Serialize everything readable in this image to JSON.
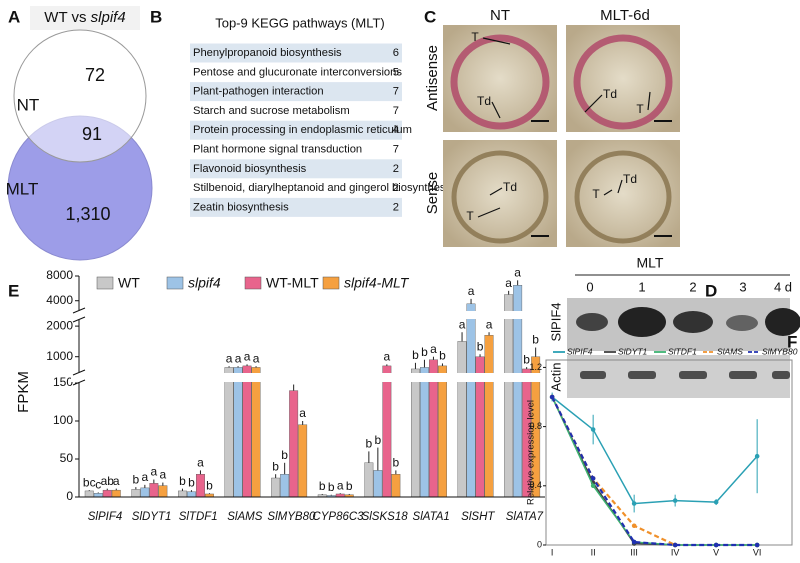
{
  "panel_letters": [
    "A",
    "B",
    "C",
    "D",
    "E",
    "F"
  ],
  "venn": {
    "title_prefix": "WT vs",
    "title_gene": "slpif4",
    "sets": [
      "NT",
      "MLT"
    ],
    "counts": [
      "72",
      "91",
      "1,310"
    ]
  },
  "kegg": {
    "title": "Top-9 KEGG pathways (MLT)",
    "rows": [
      [
        "Phenylpropanoid biosynthesis",
        6
      ],
      [
        "Pentose and glucuronate interconversions",
        5
      ],
      [
        "Plant-pathogen interaction",
        7
      ],
      [
        "Starch and sucrose metabolism",
        7
      ],
      [
        "Protein processing in endoplasmic reticulum",
        4
      ],
      [
        "Plant hormone signal transduction",
        7
      ],
      [
        "Flavonoid biosynthesis",
        2
      ],
      [
        "Stilbenoid, diarylheptanoid and gingerol biosynthesis",
        2
      ],
      [
        "Zeatin biosynthesis",
        2
      ]
    ]
  },
  "in_situ": {
    "columns": [
      "NT",
      "MLT-6d"
    ],
    "rows": [
      "Antisense",
      "Sense"
    ],
    "annotations": [
      [
        "T",
        "Td"
      ],
      [
        "Td",
        "T"
      ],
      [
        "Td",
        "T"
      ],
      [
        "T",
        "Td"
      ]
    ]
  },
  "western": {
    "group": "MLT",
    "lanes": [
      "0",
      "1",
      "2",
      "3",
      "4 d"
    ],
    "rows": [
      "SlPIF4",
      "Actin"
    ]
  },
  "chart_data": [
    {
      "type": "bar",
      "y_label": "FPKM",
      "categories": [
        "SlPIF4",
        "SlDYT1",
        "SlTDF1",
        "SlAMS",
        "SlMYB80",
        "CYP86C3",
        "SlSKS18",
        "SlATA1",
        "SlSHT",
        "SlATA7"
      ],
      "ylim": [
        0,
        8000
      ],
      "ysegments": [
        [
          0,
          150
        ],
        [
          500,
          2200
        ],
        [
          2500,
          8000
        ]
      ],
      "yticks": [
        0,
        50,
        100,
        150,
        1000,
        2000,
        4000,
        8000
      ],
      "series": [
        {
          "name": "WT",
          "color": "#c8c8c8",
          "values": [
            8,
            10,
            8,
            650,
            25,
            3,
            45,
            600,
            1500,
            5000
          ],
          "errors": [
            1,
            3,
            3,
            40,
            5,
            1,
            15,
            200,
            300,
            600
          ],
          "sig_labels": [
            "bc",
            "b",
            "b",
            "a",
            "b",
            "b",
            "b",
            "b",
            "a",
            "a"
          ]
        },
        {
          "name": "slpif4",
          "color": "#9dc3e6",
          "values": [
            5,
            12,
            7,
            650,
            30,
            2,
            35,
            650,
            3500,
            6500
          ],
          "errors": [
            1,
            4,
            2,
            40,
            15,
            1,
            30,
            250,
            800,
            800
          ],
          "sig_labels": [
            "c",
            "a",
            "b",
            "a",
            "b",
            "b",
            "b",
            "b",
            "a",
            "a"
          ]
        },
        {
          "name": "WT-MLT",
          "color": "#e8648c",
          "values": [
            9,
            18,
            30,
            700,
            140,
            4,
            700,
            900,
            1000,
            600
          ],
          "errors": [
            2,
            5,
            5,
            50,
            8,
            1,
            50,
            100,
            80,
            60
          ],
          "sig_labels": [
            "ab",
            "a",
            "a",
            "a",
            "a",
            "a",
            "a",
            "a",
            "b",
            "b"
          ]
        },
        {
          "name": "slpif4-MLT",
          "color": "#f5a040",
          "values": [
            9,
            15,
            4,
            650,
            95,
            3,
            30,
            700,
            1700,
            1000
          ],
          "errors": [
            2,
            4,
            1,
            40,
            5,
            1,
            5,
            80,
            100,
            300
          ],
          "sig_labels": [
            "a",
            "a",
            "b",
            "a",
            "a",
            "b",
            "b",
            "b",
            "a",
            "b"
          ]
        }
      ]
    },
    {
      "type": "line",
      "y_label": "Relative expression level",
      "categories": [
        "I",
        "II",
        "III",
        "IV",
        "V",
        "VI"
      ],
      "ylim": [
        0,
        1.25
      ],
      "yticks": [
        0,
        0.4,
        0.8,
        1.2
      ],
      "series": [
        {
          "name": "SlPIF4",
          "color": "#2aa0b4",
          "dash": false,
          "values": [
            1.0,
            0.78,
            0.28,
            0.3,
            0.29,
            0.6
          ],
          "errors": [
            0.03,
            0.1,
            0.06,
            0.04,
            0.02,
            0.25
          ]
        },
        {
          "name": "SlDYT1",
          "color": "#404040",
          "dash": false,
          "values": [
            1.0,
            0.42,
            0.01,
            0,
            0,
            0
          ]
        },
        {
          "name": "SlTDF1",
          "color": "#3cb371",
          "dash": false,
          "values": [
            1.0,
            0.4,
            0.02,
            0,
            0,
            0
          ]
        },
        {
          "name": "SlAMS",
          "color": "#f0902a",
          "dash": true,
          "values": [
            1.0,
            0.45,
            0.13,
            0.0,
            null,
            null
          ]
        },
        {
          "name": "SlMYB80",
          "color": "#2030b0",
          "dash": true,
          "values": [
            1.0,
            0.45,
            0.02,
            0,
            0,
            0
          ]
        }
      ]
    }
  ]
}
